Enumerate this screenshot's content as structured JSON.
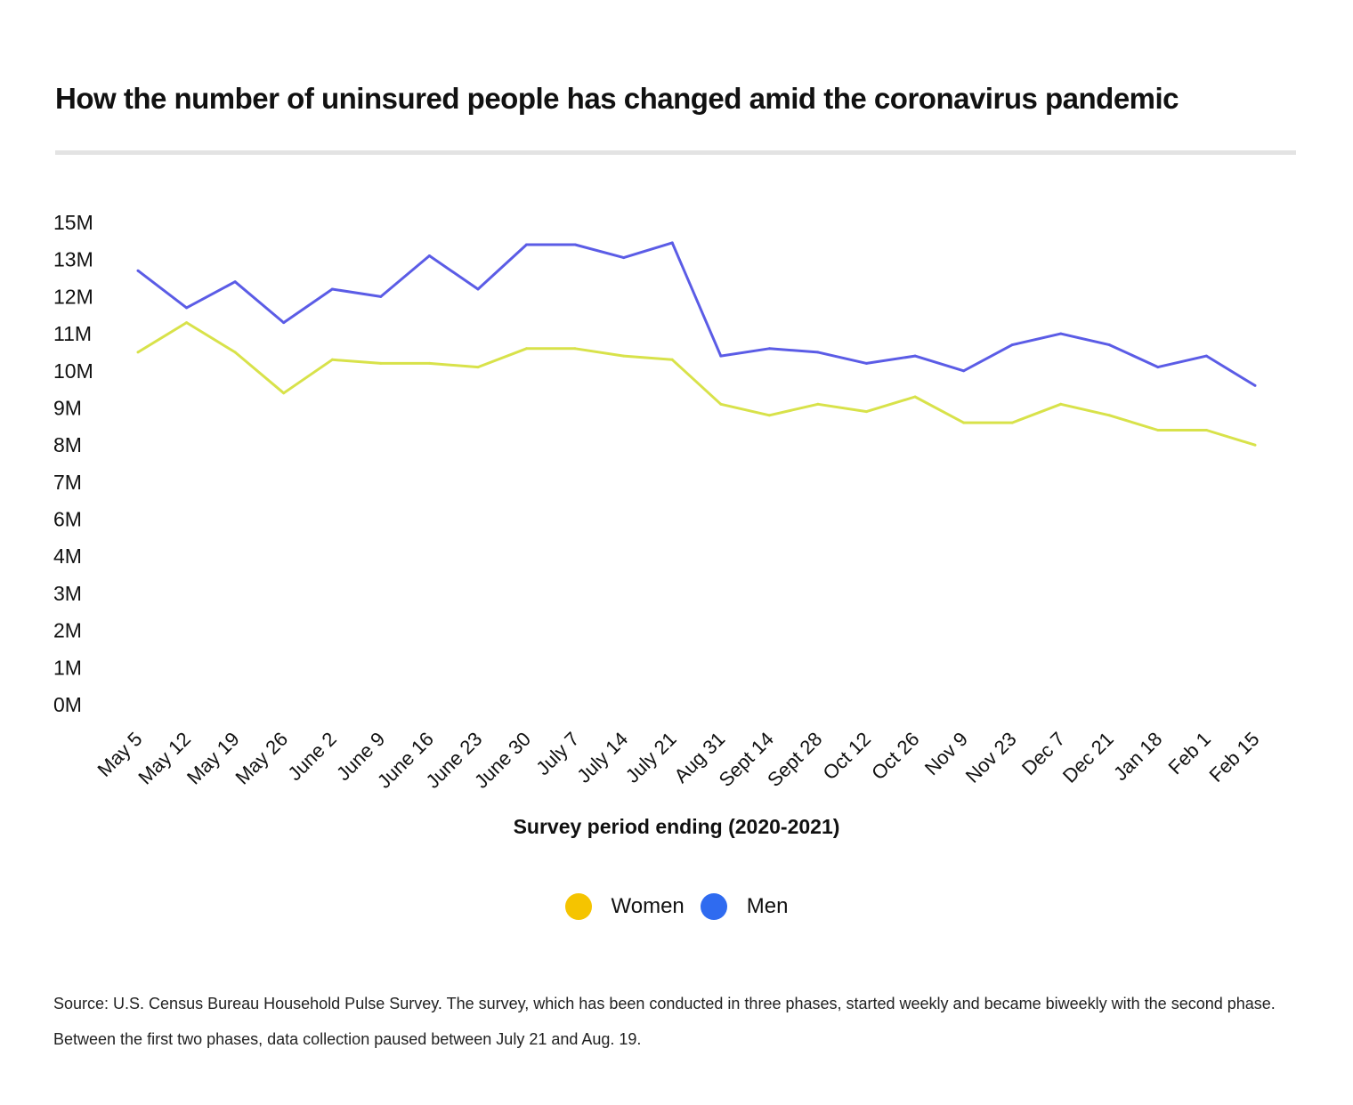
{
  "title": "How the number of uninsured people has changed amid the coronavirus pandemic",
  "source": "Source: U.S. Census Bureau Household Pulse Survey. The survey, which has been conducted in three phases, started weekly and became biweekly with the second phase. Between the first two phases, data collection paused between July 21 and Aug. 19.",
  "colors": {
    "women": "#f5c400",
    "women_line": "#d8e24a",
    "men": "#2f6bf0",
    "men_line": "#5b5ce6"
  },
  "legend": [
    {
      "key": "women",
      "label": "Women"
    },
    {
      "key": "men",
      "label": "Men"
    }
  ],
  "chart_data": {
    "type": "line",
    "title": "How the number of uninsured people has changed amid the coronavirus pandemic",
    "xlabel": "Survey period ending (2020-2021)",
    "ylabel": "",
    "ytick_labels": [
      "0M",
      "1M",
      "2M",
      "3M",
      "4M",
      "6M",
      "7M",
      "8M",
      "9M",
      "10M",
      "11M",
      "12M",
      "13M",
      "15M"
    ],
    "categories": [
      "May 5",
      "May 12",
      "May 19",
      "May 26",
      "June 2",
      "June 9",
      "June 16",
      "June 23",
      "June 30",
      "July 7",
      "July 14",
      "July 21",
      "Aug 31",
      "Sept 14",
      "Sept 28",
      "Oct 12",
      "Oct 26",
      "Nov 9",
      "Nov 23",
      "Dec 7",
      "Dec 21",
      "Jan 18",
      "Feb 1",
      "Feb 15"
    ],
    "series": [
      {
        "name": "Women",
        "values": [
          10.5,
          11.3,
          10.5,
          9.4,
          10.3,
          10.2,
          10.2,
          10.1,
          10.6,
          10.6,
          10.4,
          10.3,
          9.1,
          8.8,
          9.1,
          8.9,
          9.3,
          8.6,
          8.6,
          9.1,
          8.8,
          8.4,
          8.4,
          8.0
        ]
      },
      {
        "name": "Men",
        "values": [
          12.7,
          11.7,
          12.4,
          11.3,
          12.2,
          12.0,
          13.2,
          12.2,
          13.8,
          13.8,
          13.1,
          13.9,
          10.4,
          10.6,
          10.5,
          10.2,
          10.4,
          10.0,
          10.7,
          11.0,
          10.7,
          10.1,
          10.4,
          9.6
        ]
      }
    ]
  }
}
